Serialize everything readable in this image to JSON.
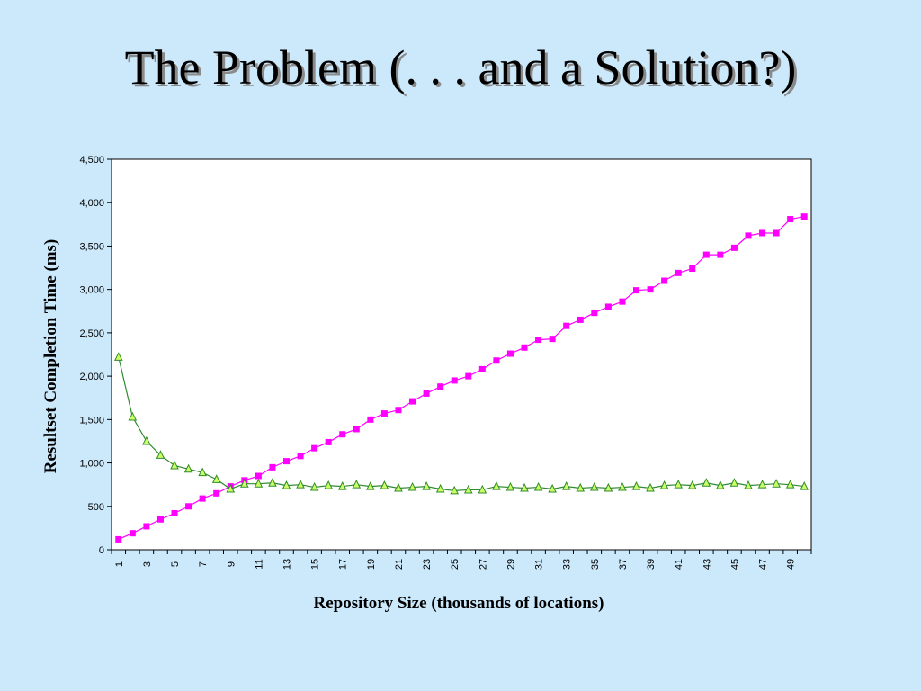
{
  "slide": {
    "title": "The Problem (. . . and a Solution?)"
  },
  "colors": {
    "background": "#cce9fb",
    "plot_area": "#ffffff",
    "series_pink": "#ff00ff",
    "series_green_line": "#2e8b2e",
    "series_green_fill": "#ccff66"
  },
  "chart_data": {
    "type": "line",
    "title": "",
    "xlabel": "Repository Size (thousands of locations)",
    "ylabel": "Resultset Completion Time (ms)",
    "ylim": [
      0,
      4500
    ],
    "yticks": [
      0,
      500,
      1000,
      1500,
      2000,
      2500,
      3000,
      3500,
      4000,
      4500
    ],
    "ytick_labels": [
      "0",
      "500",
      "1,000",
      "1,500",
      "2,000",
      "2,500",
      "3,000",
      "3,500",
      "4,000",
      "4,500"
    ],
    "xtick_labels": [
      "1",
      "3",
      "5",
      "7",
      "9",
      "11",
      "13",
      "15",
      "17",
      "19",
      "21",
      "23",
      "25",
      "27",
      "29",
      "31",
      "33",
      "35",
      "37",
      "39",
      "41",
      "43",
      "45",
      "47",
      "49"
    ],
    "x": [
      1,
      2,
      3,
      4,
      5,
      6,
      7,
      8,
      9,
      10,
      11,
      12,
      13,
      14,
      15,
      16,
      17,
      18,
      19,
      20,
      21,
      22,
      23,
      24,
      25,
      26,
      27,
      28,
      29,
      30,
      31,
      32,
      33,
      34,
      35,
      36,
      37,
      38,
      39,
      40,
      41,
      42,
      43,
      44,
      45,
      46,
      47,
      48,
      49,
      50
    ],
    "series": [
      {
        "marker": "square",
        "color": "#ff00ff",
        "values": [
          120,
          190,
          270,
          350,
          420,
          500,
          590,
          650,
          730,
          800,
          850,
          950,
          1020,
          1080,
          1170,
          1240,
          1330,
          1390,
          1500,
          1570,
          1610,
          1710,
          1800,
          1880,
          1950,
          2000,
          2080,
          2180,
          2260,
          2330,
          2420,
          2430,
          2580,
          2650,
          2730,
          2800,
          2860,
          2990,
          3000,
          3100,
          3190,
          3240,
          3400,
          3400,
          3480,
          3620,
          3650,
          3650,
          3810,
          3840
        ]
      },
      {
        "marker": "triangle",
        "color": "#2e8b2e",
        "values": [
          2220,
          1530,
          1250,
          1090,
          970,
          930,
          890,
          810,
          700,
          760,
          760,
          770,
          740,
          750,
          720,
          740,
          730,
          750,
          730,
          740,
          710,
          720,
          730,
          700,
          680,
          690,
          690,
          730,
          720,
          710,
          720,
          700,
          730,
          710,
          720,
          710,
          720,
          730,
          710,
          740,
          750,
          740,
          770,
          740,
          770,
          740,
          750,
          760,
          750,
          730
        ]
      }
    ]
  }
}
